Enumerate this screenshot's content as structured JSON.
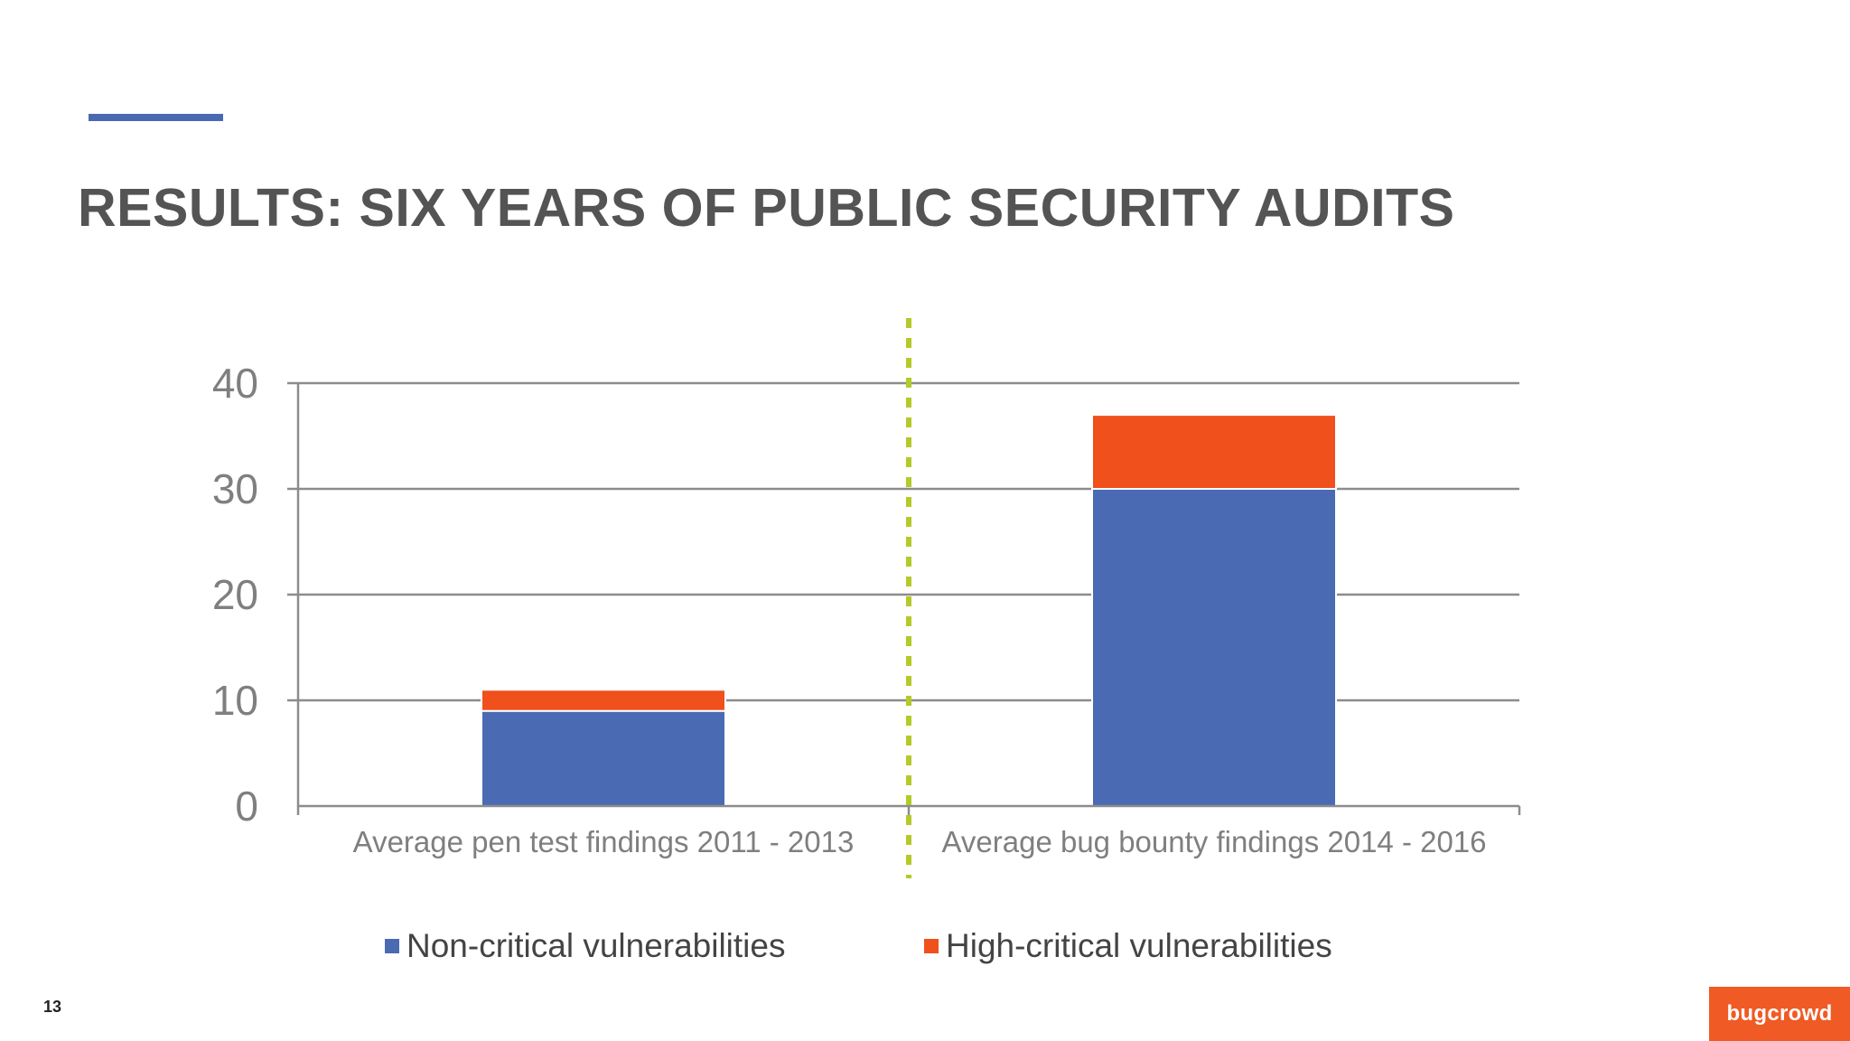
{
  "slide": {
    "title": "RESULTS: SIX YEARS OF PUBLIC SECURITY AUDITS",
    "page_number": "13",
    "logo_text": "bugcrowd",
    "accent_color": "#4a69b3",
    "brand_color": "#f05a24"
  },
  "chart_data": {
    "type": "bar",
    "stacked": true,
    "categories": [
      "Average pen test findings 2011 - 2013",
      "Average bug bounty findings 2014 - 2016"
    ],
    "series": [
      {
        "name": "Non-critical vulnerabilities",
        "values": [
          9,
          30
        ],
        "color": "#4a6bb3"
      },
      {
        "name": "High-critical vulnerabilities",
        "values": [
          2,
          7
        ],
        "color": "#ef501c"
      }
    ],
    "yticks": [
      0,
      10,
      20,
      30,
      40
    ],
    "ylim": [
      0,
      40
    ],
    "grid": true,
    "legend_position": "bottom",
    "divider": {
      "between_categories": true,
      "style": "dashed",
      "color": "#b5c928"
    }
  }
}
